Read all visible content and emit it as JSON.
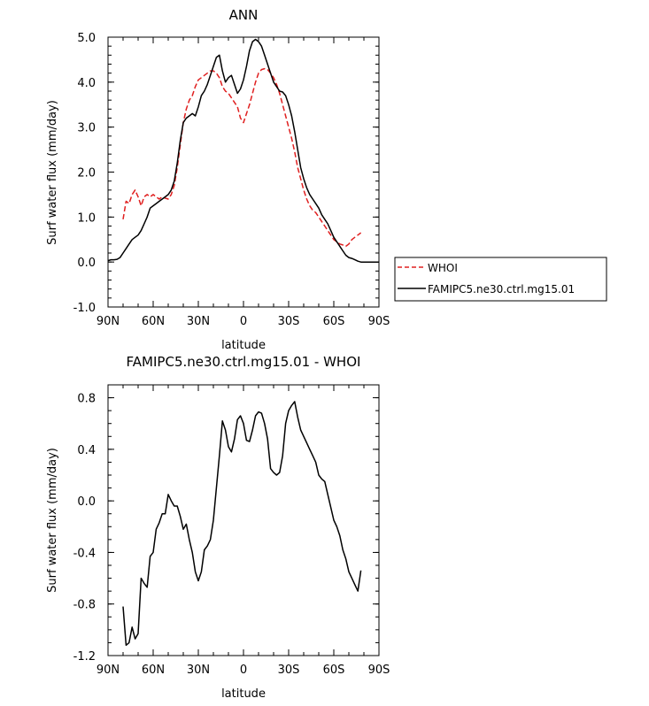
{
  "legend": {
    "items": [
      {
        "label": "WHOI",
        "color": "#e02020",
        "dash": true
      },
      {
        "label": "FAMIPC5.ne30.ctrl.mg15.01",
        "color": "#000000",
        "dash": false
      }
    ]
  },
  "chart_data": [
    {
      "type": "line",
      "title": "ANN",
      "xlabel": "latitude",
      "ylabel": "Surf water flux (mm/day)",
      "x_ticks": [
        "90N",
        "60N",
        "30N",
        "0",
        "30S",
        "60S",
        "90S"
      ],
      "x_tick_values": [
        90,
        60,
        30,
        0,
        -30,
        -60,
        -90
      ],
      "xlim": [
        90,
        -90
      ],
      "ylim": [
        -1.0,
        5.0
      ],
      "y_ticks": [
        "-1.0",
        "0.0",
        "1.0",
        "2.0",
        "3.0",
        "4.0",
        "5.0"
      ],
      "y_tick_values": [
        -1,
        0,
        1,
        2,
        3,
        4,
        5
      ],
      "series": [
        {
          "name": "WHOI",
          "color": "#e02020",
          "dash": true,
          "x": [
            80,
            78,
            76,
            74,
            72,
            70,
            68,
            66,
            64,
            62,
            60,
            58,
            56,
            54,
            52,
            50,
            48,
            46,
            44,
            42,
            40,
            38,
            36,
            34,
            32,
            30,
            28,
            26,
            24,
            22,
            20,
            18,
            16,
            14,
            12,
            10,
            8,
            6,
            4,
            2,
            0,
            -2,
            -4,
            -6,
            -8,
            -10,
            -12,
            -14,
            -16,
            -18,
            -20,
            -22,
            -24,
            -26,
            -28,
            -30,
            -32,
            -34,
            -36,
            -38,
            -40,
            -42,
            -44,
            -46,
            -48,
            -50,
            -52,
            -54,
            -56,
            -58,
            -60,
            -62,
            -64,
            -66,
            -68,
            -70,
            -72,
            -74,
            -76,
            -78
          ],
          "y": [
            0.95,
            1.35,
            1.3,
            1.5,
            1.6,
            1.45,
            1.25,
            1.45,
            1.5,
            1.45,
            1.5,
            1.45,
            1.4,
            1.45,
            1.42,
            1.4,
            1.5,
            1.7,
            2.1,
            2.6,
            3.1,
            3.4,
            3.6,
            3.7,
            3.9,
            4.05,
            4.1,
            4.15,
            4.2,
            4.25,
            4.25,
            4.2,
            4.1,
            3.9,
            3.8,
            3.75,
            3.65,
            3.55,
            3.45,
            3.2,
            3.1,
            3.3,
            3.5,
            3.75,
            4.0,
            4.2,
            4.28,
            4.3,
            4.28,
            4.2,
            4.1,
            3.95,
            3.75,
            3.5,
            3.25,
            3.0,
            2.75,
            2.45,
            2.1,
            1.85,
            1.6,
            1.4,
            1.25,
            1.15,
            1.1,
            1.0,
            0.9,
            0.8,
            0.7,
            0.6,
            0.5,
            0.45,
            0.4,
            0.38,
            0.35,
            0.4,
            0.5,
            0.55,
            0.6,
            0.65
          ]
        },
        {
          "name": "FAMIPC5.ne30.ctrl.mg15.01",
          "color": "#000000",
          "dash": false,
          "x": [
            90,
            88,
            86,
            84,
            82,
            80,
            78,
            76,
            74,
            72,
            70,
            68,
            66,
            64,
            62,
            60,
            58,
            56,
            54,
            52,
            50,
            48,
            46,
            44,
            42,
            40,
            38,
            36,
            34,
            32,
            30,
            28,
            26,
            24,
            22,
            20,
            18,
            16,
            14,
            12,
            10,
            8,
            6,
            4,
            2,
            0,
            -2,
            -4,
            -6,
            -8,
            -10,
            -12,
            -14,
            -16,
            -18,
            -20,
            -22,
            -24,
            -26,
            -28,
            -30,
            -32,
            -34,
            -36,
            -38,
            -40,
            -42,
            -44,
            -46,
            -48,
            -50,
            -52,
            -54,
            -56,
            -58,
            -60,
            -62,
            -64,
            -66,
            -68,
            -70,
            -72,
            -74,
            -76,
            -78,
            -80,
            -82,
            -84,
            -86,
            -88,
            -90
          ],
          "y": [
            0.03,
            0.05,
            0.05,
            0.06,
            0.1,
            0.2,
            0.3,
            0.4,
            0.5,
            0.55,
            0.6,
            0.7,
            0.85,
            1.0,
            1.2,
            1.25,
            1.3,
            1.35,
            1.4,
            1.45,
            1.5,
            1.6,
            1.8,
            2.2,
            2.7,
            3.1,
            3.2,
            3.25,
            3.3,
            3.25,
            3.45,
            3.7,
            3.8,
            3.95,
            4.15,
            4.35,
            4.55,
            4.6,
            4.25,
            4.0,
            4.1,
            4.15,
            3.95,
            3.75,
            3.85,
            4.05,
            4.35,
            4.7,
            4.9,
            4.95,
            4.9,
            4.8,
            4.6,
            4.4,
            4.2,
            4.0,
            3.9,
            3.8,
            3.78,
            3.7,
            3.5,
            3.25,
            2.9,
            2.5,
            2.1,
            1.85,
            1.65,
            1.5,
            1.4,
            1.3,
            1.2,
            1.05,
            0.95,
            0.85,
            0.7,
            0.55,
            0.45,
            0.35,
            0.25,
            0.15,
            0.1,
            0.08,
            0.05,
            0.02,
            0.0,
            0.0,
            0.0,
            0.0,
            0.0,
            0.0,
            0.0
          ]
        }
      ]
    },
    {
      "type": "line",
      "title": "FAMIPC5.ne30.ctrl.mg15.01 - WHOI",
      "xlabel": "latitude",
      "ylabel": "Surf water flux (mm/day)",
      "x_ticks": [
        "90N",
        "60N",
        "30N",
        "0",
        "30S",
        "60S",
        "90S"
      ],
      "x_tick_values": [
        90,
        60,
        30,
        0,
        -30,
        -60,
        -90
      ],
      "xlim": [
        90,
        -90
      ],
      "ylim": [
        -1.2,
        0.9
      ],
      "y_ticks": [
        "-1.2",
        "-0.8",
        "-0.4",
        "0.0",
        "0.4",
        "0.8"
      ],
      "y_tick_values": [
        -1.2,
        -0.8,
        -0.4,
        0.0,
        0.4,
        0.8
      ],
      "series": [
        {
          "name": "",
          "color": "#000000",
          "dash": false,
          "x": [
            80,
            78,
            76,
            74,
            72,
            70,
            68,
            66,
            64,
            62,
            60,
            58,
            56,
            54,
            52,
            50,
            48,
            46,
            44,
            42,
            40,
            38,
            36,
            34,
            32,
            30,
            28,
            26,
            24,
            22,
            20,
            18,
            16,
            14,
            12,
            10,
            8,
            6,
            4,
            2,
            0,
            -2,
            -4,
            -6,
            -8,
            -10,
            -12,
            -14,
            -16,
            -18,
            -20,
            -22,
            -24,
            -26,
            -28,
            -30,
            -32,
            -34,
            -36,
            -38,
            -40,
            -42,
            -44,
            -46,
            -48,
            -50,
            -52,
            -54,
            -56,
            -58,
            -60,
            -62,
            -64,
            -66,
            -68,
            -70,
            -72,
            -74,
            -76,
            -78
          ],
          "y": [
            -0.82,
            -1.12,
            -1.1,
            -0.98,
            -1.07,
            -1.03,
            -0.6,
            -0.64,
            -0.67,
            -0.43,
            -0.4,
            -0.22,
            -0.17,
            -0.1,
            -0.1,
            0.05,
            0.0,
            -0.04,
            -0.04,
            -0.12,
            -0.22,
            -0.18,
            -0.3,
            -0.4,
            -0.55,
            -0.62,
            -0.55,
            -0.38,
            -0.35,
            -0.3,
            -0.15,
            0.1,
            0.35,
            0.62,
            0.55,
            0.42,
            0.38,
            0.48,
            0.63,
            0.66,
            0.6,
            0.47,
            0.46,
            0.55,
            0.66,
            0.69,
            0.68,
            0.6,
            0.48,
            0.25,
            0.22,
            0.2,
            0.22,
            0.35,
            0.6,
            0.7,
            0.74,
            0.77,
            0.65,
            0.55,
            0.5,
            0.45,
            0.4,
            0.35,
            0.3,
            0.2,
            0.17,
            0.15,
            0.05,
            -0.05,
            -0.15,
            -0.2,
            -0.27,
            -0.38,
            -0.45,
            -0.55,
            -0.6,
            -0.65,
            -0.7,
            -0.54
          ]
        }
      ]
    }
  ]
}
